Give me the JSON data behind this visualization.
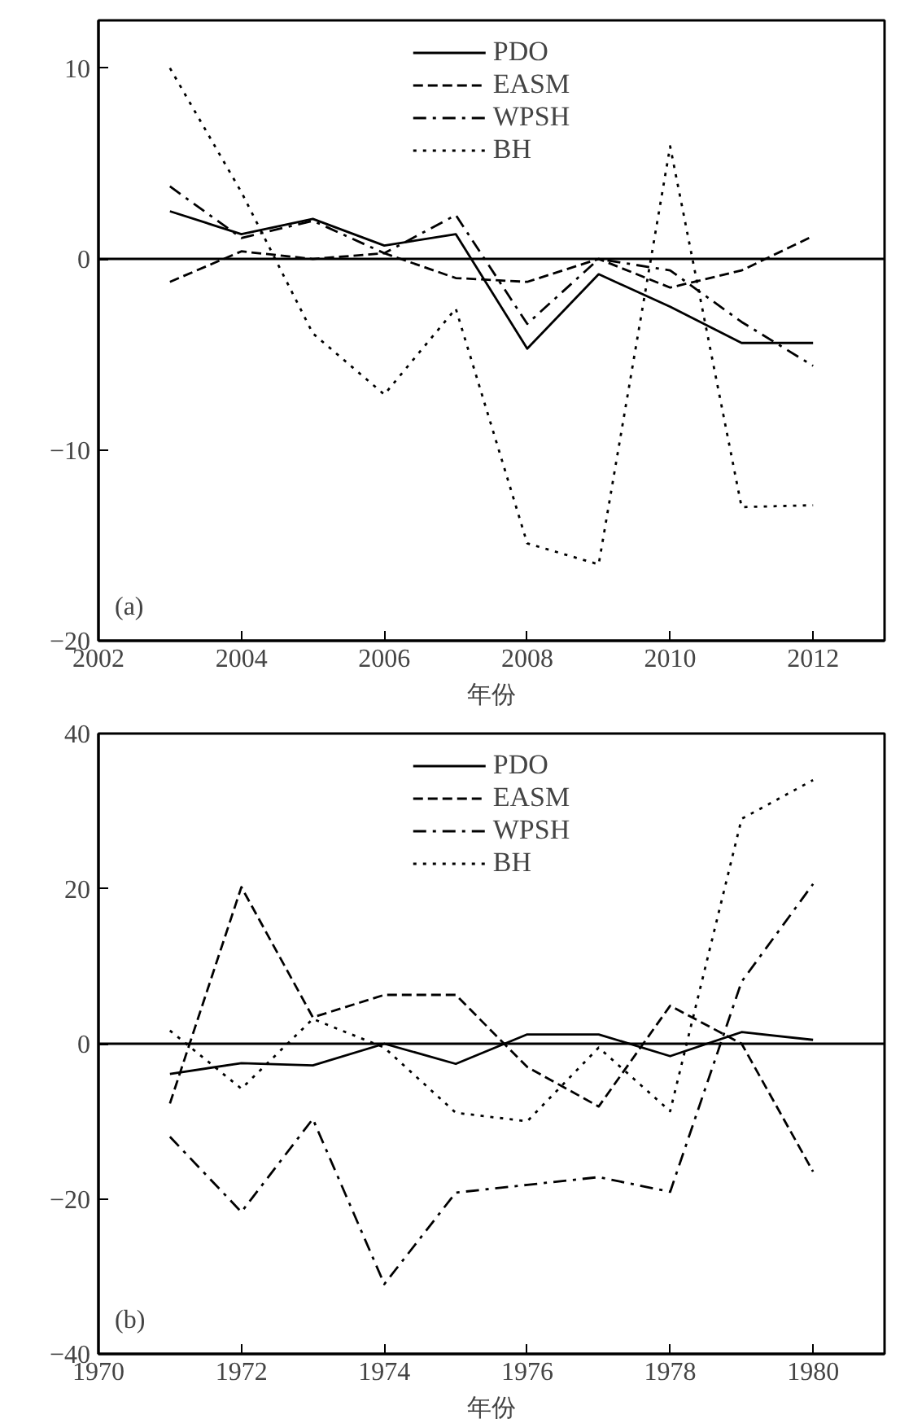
{
  "chart_data": [
    {
      "type": "line",
      "xlabel": "年份",
      "x": [
        2003,
        2004,
        2005,
        2006,
        2007,
        2008,
        2009,
        2010,
        2011,
        2012
      ],
      "xlim": [
        2002,
        2013
      ],
      "xticks": [
        2002,
        2004,
        2006,
        2008,
        2010,
        2012
      ],
      "ylim": [
        -20,
        12.5
      ],
      "yticks": [
        {
          "value": -20,
          "label": "−20"
        },
        {
          "value": -10,
          "label": "−10"
        },
        0,
        10
      ],
      "legend": "top",
      "grid": false,
      "marker": "none",
      "series": [
        {
          "name": "PDO",
          "color": "#000000",
          "line_style": "solid",
          "values": [
            2.5,
            1.3,
            2.1,
            0.7,
            1.3,
            -4.7,
            -0.8,
            -2.5,
            -4.4,
            -4.4
          ]
        },
        {
          "name": "EASM",
          "color": "#000000",
          "line_style": "dashed",
          "values": [
            -1.2,
            0.4,
            0.0,
            0.3,
            -1.0,
            -1.2,
            0.0,
            -1.5,
            -0.6,
            1.2
          ]
        },
        {
          "name": "WPSH",
          "color": "#000000",
          "line_style": "dashdot",
          "values": [
            3.8,
            1.1,
            2.0,
            0.3,
            2.3,
            -3.4,
            0.0,
            -0.6,
            -3.3,
            -5.6
          ]
        },
        {
          "name": "BH",
          "color": "#000000",
          "line_style": "dotted",
          "values": [
            10.0,
            3.5,
            -3.9,
            -7.1,
            -2.6,
            -14.9,
            -16.0,
            5.9,
            -13.0,
            -12.9
          ]
        }
      ],
      "ref_lines": [
        {
          "axis": "y",
          "value": 0,
          "color": "#000000",
          "line_style": "solid"
        }
      ],
      "annotations": [
        "(a)"
      ]
    },
    {
      "type": "line",
      "xlabel": "年份",
      "x": [
        1971,
        1972,
        1973,
        1974,
        1975,
        1976,
        1977,
        1978,
        1979,
        1980
      ],
      "xlim": [
        1970,
        1981
      ],
      "xticks": [
        1970,
        1972,
        1974,
        1976,
        1978,
        1980
      ],
      "ylim": [
        -40,
        40
      ],
      "yticks": [
        {
          "value": -40,
          "label": "−40"
        },
        {
          "value": -20,
          "label": "−20"
        },
        0,
        20,
        40
      ],
      "legend": "top",
      "grid": false,
      "marker": "none",
      "series": [
        {
          "name": "PDO",
          "color": "#000000",
          "line_style": "solid",
          "values": [
            -3.9,
            -2.5,
            -2.8,
            0.0,
            -2.6,
            1.2,
            1.2,
            -1.6,
            1.5,
            0.5
          ]
        },
        {
          "name": "EASM",
          "color": "#000000",
          "line_style": "dashed",
          "values": [
            -7.7,
            20.2,
            3.4,
            6.3,
            6.3,
            -3.0,
            -8.1,
            4.9,
            0.0,
            -16.5
          ]
        },
        {
          "name": "WPSH",
          "color": "#000000",
          "line_style": "dashdot",
          "values": [
            -12.0,
            -21.7,
            -9.7,
            -31.0,
            -19.2,
            -18.2,
            -17.2,
            -19.1,
            8.0,
            20.6
          ]
        },
        {
          "name": "BH",
          "color": "#000000",
          "line_style": "dotted",
          "values": [
            1.7,
            -5.8,
            3.2,
            -0.5,
            -8.9,
            -10.0,
            -0.5,
            -8.7,
            29.0,
            34.0
          ]
        }
      ],
      "ref_lines": [
        {
          "axis": "y",
          "value": 0,
          "color": "#000000",
          "line_style": "solid"
        }
      ],
      "annotations": [
        "(b)"
      ]
    }
  ]
}
